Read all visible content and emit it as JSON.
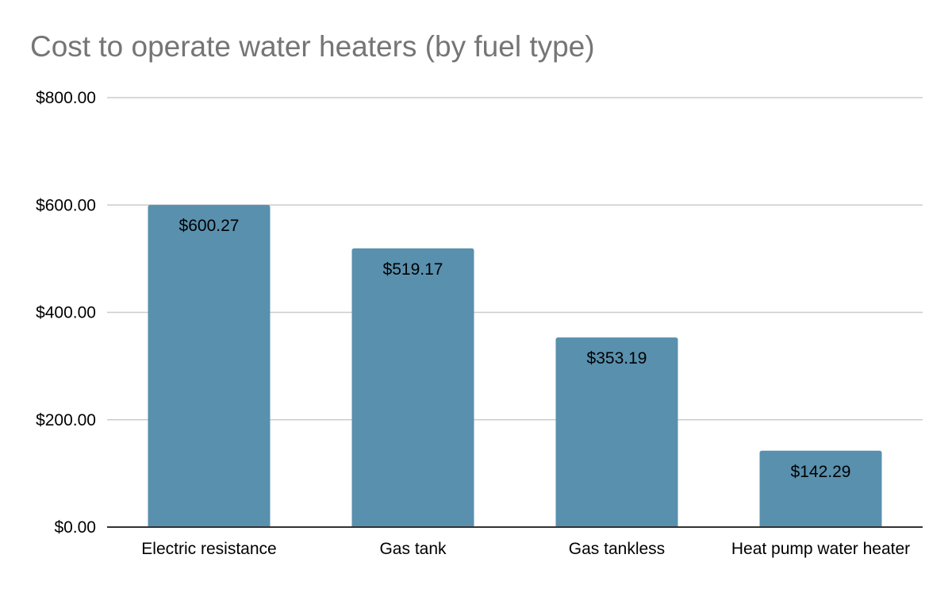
{
  "chart_data": {
    "type": "bar",
    "title": "Cost to operate water heaters (by fuel type)",
    "xlabel": "",
    "ylabel": "",
    "categories": [
      "Electric resistance",
      "Gas tank",
      "Gas tankless",
      "Heat pump water heater"
    ],
    "values": [
      600.27,
      519.17,
      353.19,
      142.29
    ],
    "data_labels": [
      "$600.27",
      "$519.17",
      "$353.19",
      "$142.29"
    ],
    "y_ticks": [
      0,
      200,
      400,
      600,
      800
    ],
    "y_tick_labels": [
      "$0.00",
      "$200.00",
      "$400.00",
      "$600.00",
      "$800.00"
    ],
    "ylim": [
      0,
      800
    ],
    "grid": true,
    "legend": "none",
    "colors": {
      "bar": "#5990ae",
      "grid": "#cccccc",
      "axis": "#333333",
      "title": "#757575"
    }
  }
}
